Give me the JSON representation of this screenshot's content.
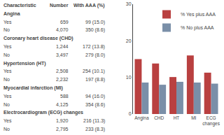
{
  "chart_data": [
    {
      "type": "table",
      "columns": [
        "Characteristic",
        "Number",
        "With AAA (%)"
      ],
      "rows": [
        [
          "Angina",
          null,
          null
        ],
        [
          "Yes",
          "659",
          "99 (15.0)"
        ],
        [
          "No",
          "4,070",
          "350 (8.6)"
        ],
        [
          "Coronary heart disease (CHD)",
          null,
          null
        ],
        [
          "Yes",
          "1,244",
          "172 (13.8)"
        ],
        [
          "No",
          "3,497",
          "279 (8.0)"
        ],
        [
          "Hypertension (HT)",
          null,
          null
        ],
        [
          "Yes",
          "2,508",
          "254 (10.1)"
        ],
        [
          "No",
          "2,232",
          "197 (8.8)"
        ],
        [
          "Myocardial infarction (MI)",
          null,
          null
        ],
        [
          "Yes",
          "588",
          "94 (16.0)"
        ],
        [
          "No",
          "4,125",
          "354 (8.6)"
        ],
        [
          "Electrocardiogram (ECG) changes",
          null,
          null
        ],
        [
          "Yes",
          "1,920",
          "216 (11.3)"
        ],
        [
          "No",
          "2,795",
          "233 (8.3)"
        ]
      ]
    },
    {
      "type": "bar",
      "categories": [
        "Angina",
        "CHD",
        "HT",
        "MI",
        "ECG\nchanges"
      ],
      "series": [
        {
          "name": "% Yes plus AAA",
          "color": "#b94040",
          "values": [
            15.0,
            13.8,
            10.1,
            16.0,
            11.3
          ]
        },
        {
          "name": "% No plus AAA",
          "color": "#7a8fa8",
          "values": [
            8.6,
            8.0,
            8.8,
            8.6,
            8.3
          ]
        }
      ],
      "ylim": [
        0,
        30
      ],
      "yticks": [
        0,
        10,
        20,
        30
      ],
      "grid": false,
      "legend": "upper right"
    }
  ]
}
